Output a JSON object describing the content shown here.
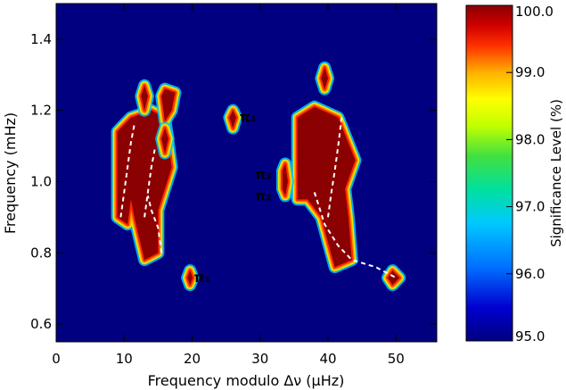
{
  "chart_data": {
    "type": "heatmap",
    "title": "",
    "xlabel": "Frequency modulo Δν (μHz)",
    "ylabel": "Frequency (mHz)",
    "xlim": [
      0,
      56
    ],
    "ylim": [
      0.55,
      1.5
    ],
    "xticks": [
      "0",
      "10",
      "20",
      "30",
      "40",
      "50"
    ],
    "yticks": [
      "0.6",
      "0.8",
      "1.0",
      "1.2",
      "1.4"
    ],
    "grid": false,
    "colorbar": {
      "label": "Significance Level (%)",
      "range": [
        95.0,
        100.0
      ],
      "ticks": [
        "95.0",
        "96.0",
        "97.0",
        "98.0",
        "99.0",
        "100.0"
      ]
    },
    "background_level": 95.0,
    "regions": [
      {
        "level": 100.0,
        "polygon": [
          [
            9,
            0.9
          ],
          [
            9,
            1.14
          ],
          [
            11,
            1.18
          ],
          [
            14,
            1.2
          ],
          [
            16,
            1.18
          ],
          [
            17,
            1.04
          ],
          [
            15,
            0.92
          ],
          [
            15,
            0.8
          ],
          [
            13,
            0.78
          ],
          [
            11.5,
            0.9
          ],
          [
            11,
            0.95
          ],
          [
            10.5,
            0.88
          ]
        ]
      },
      {
        "level": 100.0,
        "polygon": [
          [
            35.5,
            0.95
          ],
          [
            35.5,
            1.18
          ],
          [
            38,
            1.21
          ],
          [
            41.5,
            1.18
          ],
          [
            44,
            1.06
          ],
          [
            42.5,
            0.98
          ],
          [
            43,
            0.9
          ],
          [
            43.5,
            0.78
          ],
          [
            41,
            0.76
          ],
          [
            39,
            0.9
          ],
          [
            37,
            0.95
          ]
        ]
      },
      {
        "level": 100.0,
        "polygon": [
          [
            12.5,
            1.24
          ],
          [
            13,
            1.27
          ],
          [
            13.5,
            1.24
          ],
          [
            13,
            1.2
          ]
        ]
      },
      {
        "level": 100.0,
        "polygon": [
          [
            15.5,
            1.24
          ],
          [
            16,
            1.26
          ],
          [
            17.5,
            1.25
          ],
          [
            17,
            1.2
          ],
          [
            16,
            1.17
          ]
        ]
      },
      {
        "level": 100.0,
        "polygon": [
          [
            15.5,
            1.12
          ],
          [
            16,
            1.15
          ],
          [
            16.5,
            1.12
          ],
          [
            16,
            1.08
          ]
        ]
      },
      {
        "level": 100.0,
        "polygon": [
          [
            25.5,
            1.18
          ],
          [
            26,
            1.2
          ],
          [
            26.5,
            1.18
          ],
          [
            26,
            1.15
          ]
        ]
      },
      {
        "level": 100.0,
        "polygon": [
          [
            19.3,
            0.73
          ],
          [
            19.7,
            0.75
          ],
          [
            20.1,
            0.73
          ],
          [
            19.7,
            0.71
          ]
        ]
      },
      {
        "level": 100.0,
        "polygon": [
          [
            33.3,
            1.03
          ],
          [
            33.7,
            1.05
          ],
          [
            34.1,
            1.0
          ],
          [
            33.7,
            0.96
          ],
          [
            33.3,
            0.98
          ]
        ]
      },
      {
        "level": 100.0,
        "polygon": [
          [
            39,
            1.29
          ],
          [
            39.5,
            1.32
          ],
          [
            40,
            1.29
          ],
          [
            39.5,
            1.26
          ]
        ]
      },
      {
        "level": 100.0,
        "polygon": [
          [
            48.8,
            0.73
          ],
          [
            49.5,
            0.75
          ],
          [
            50.5,
            0.73
          ],
          [
            49.5,
            0.71
          ]
        ]
      }
    ],
    "ridges": [
      {
        "points": [
          [
            9.5,
            0.9
          ],
          [
            10,
            0.97
          ],
          [
            10.5,
            1.04
          ],
          [
            11,
            1.11
          ],
          [
            11.5,
            1.16
          ]
        ]
      },
      {
        "points": [
          [
            13,
            0.9
          ],
          [
            13.5,
            0.97
          ],
          [
            14,
            1.04
          ],
          [
            14.5,
            1.09
          ]
        ]
      },
      {
        "points": [
          [
            15.5,
            0.8
          ],
          [
            15,
            0.87
          ],
          [
            14,
            0.92
          ],
          [
            13.5,
            0.96
          ]
        ]
      },
      {
        "points": [
          [
            40,
            0.9
          ],
          [
            40.5,
            0.97
          ],
          [
            41,
            1.03
          ],
          [
            41.5,
            1.1
          ],
          [
            42,
            1.18
          ]
        ]
      },
      {
        "points": [
          [
            38,
            0.97
          ],
          [
            39.5,
            0.88
          ],
          [
            41.5,
            0.82
          ],
          [
            43.5,
            0.78
          ],
          [
            47,
            0.76
          ],
          [
            50,
            0.73
          ]
        ]
      }
    ],
    "annotations": [
      {
        "text": "π₁",
        "x": 21.5,
        "y": 0.73
      },
      {
        "text": "π₄",
        "x": 28.2,
        "y": 1.18
      },
      {
        "text": "π₃",
        "x": 30.5,
        "y": 1.02
      },
      {
        "text": "π₂",
        "x": 30.5,
        "y": 0.96
      }
    ],
    "colors": {
      "background": "#000080",
      "core": "#8b0000",
      "mid": "#ff2a00",
      "warm": "#ffa000",
      "mid_yellow": "#e8e800",
      "cool": "#00c8ff",
      "ridge": "#ffffff",
      "label": "#ffffff"
    }
  }
}
